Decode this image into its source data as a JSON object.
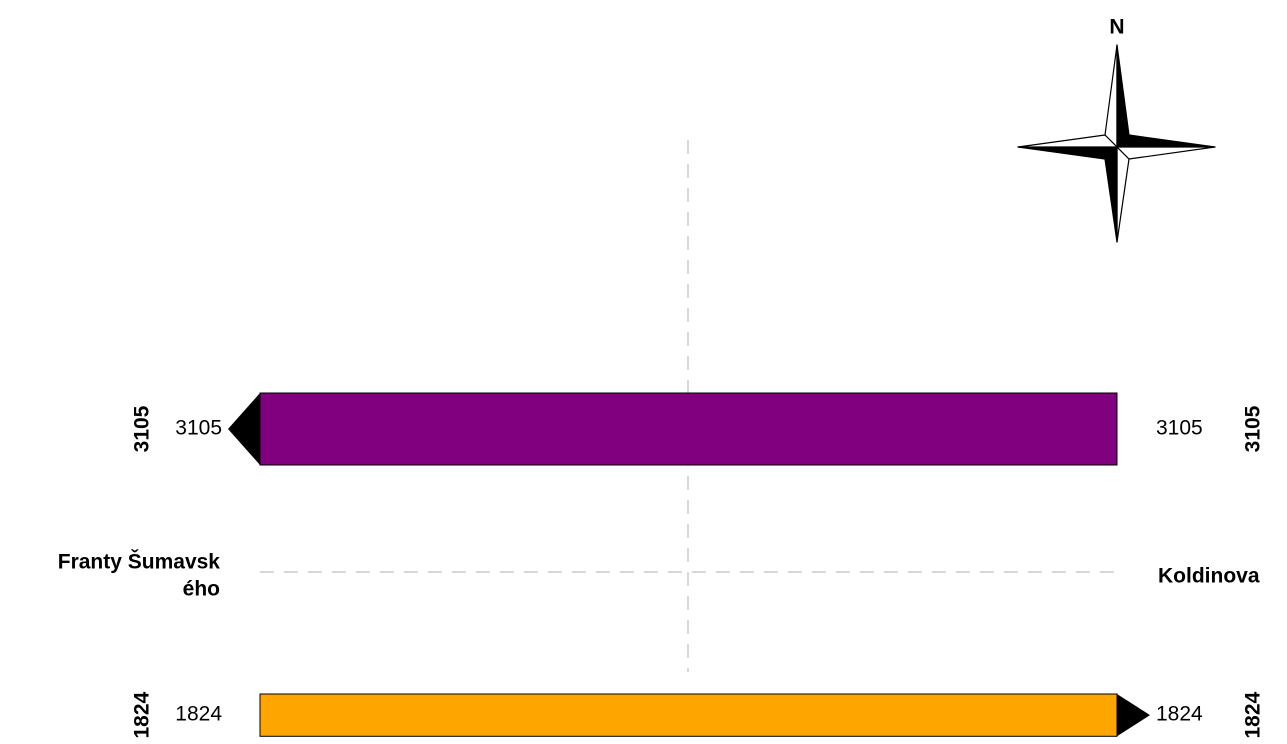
{
  "compass": {
    "label": "N"
  },
  "streets": {
    "west": [
      "Franty Šumavsk",
      "ého"
    ],
    "east": [
      "Koldinova"
    ]
  },
  "lanes": [
    {
      "value": 3105,
      "color": "#800080",
      "direction": "west"
    },
    {
      "value": 1824,
      "color": "#ffa500",
      "direction": "east"
    }
  ]
}
